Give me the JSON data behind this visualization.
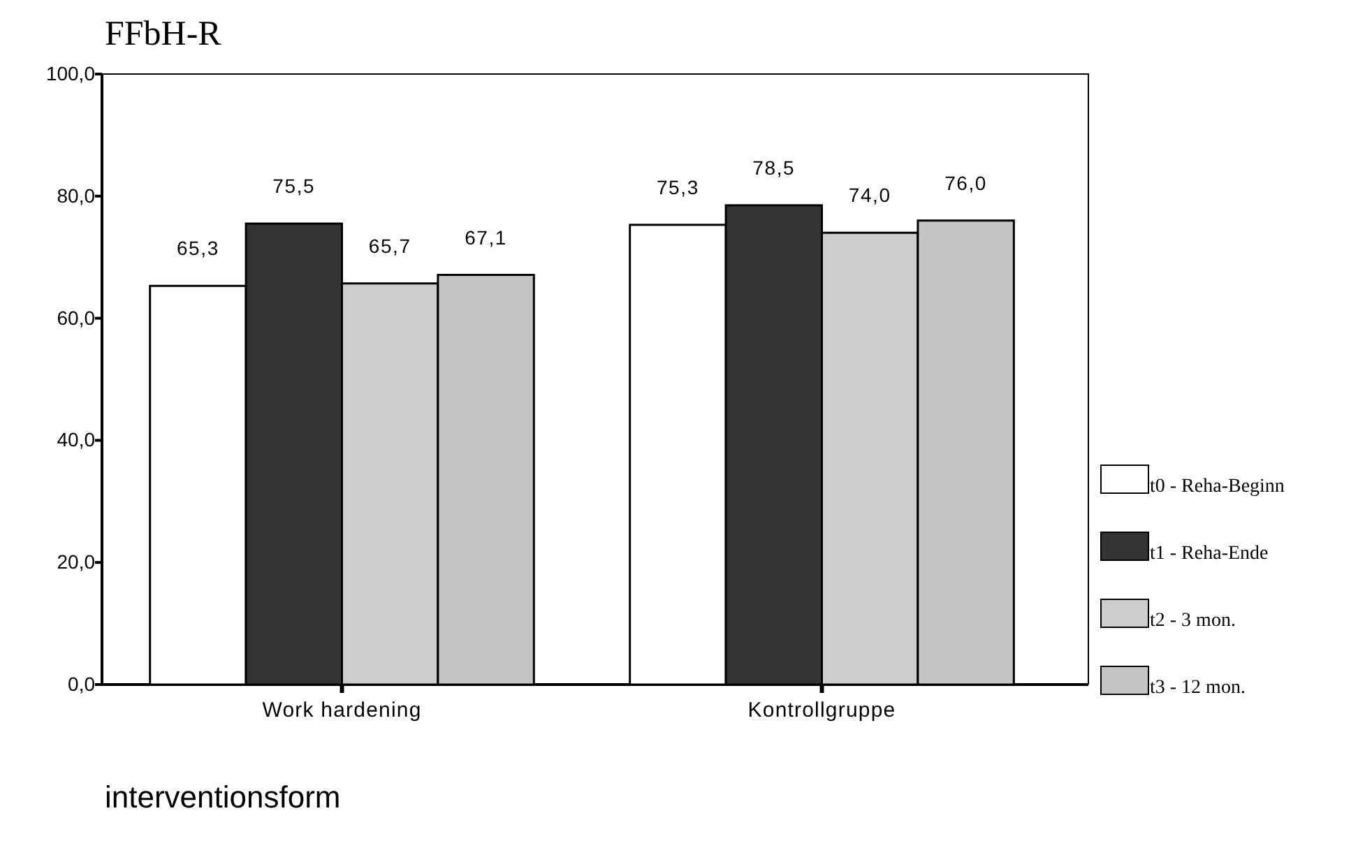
{
  "chart_data": {
    "type": "bar",
    "title": "FFbH-R",
    "xlabel": "interventionsform",
    "categories": [
      "Work hardening",
      "Kontrollgruppe"
    ],
    "series": [
      {
        "name": "t0 - Reha-Beginn",
        "color": "#ffffff",
        "values": [
          65.3,
          75.3
        ],
        "value_labels": [
          "65,3",
          "75,3"
        ]
      },
      {
        "name": "t1 - Reha-Ende",
        "color": "#333333",
        "values": [
          75.5,
          78.5
        ],
        "value_labels": [
          "75,5",
          "78,5"
        ]
      },
      {
        "name": "t2 - 3 mon.",
        "color": "#cccccc",
        "values": [
          65.7,
          74.0
        ],
        "value_labels": [
          "65,7",
          "74,0"
        ]
      },
      {
        "name": "t3 - 12 mon.",
        "color": "#c4c4c4",
        "values": [
          67.1,
          76.0
        ],
        "value_labels": [
          "67,1",
          "76,0"
        ]
      }
    ],
    "ylim": [
      0,
      100
    ],
    "yticks": [
      {
        "value": 0,
        "label": "0,0"
      },
      {
        "value": 20,
        "label": "20,0"
      },
      {
        "value": 40,
        "label": "40,0"
      },
      {
        "value": 60,
        "label": "60,0"
      },
      {
        "value": 80,
        "label": "80,0"
      },
      {
        "value": 100,
        "label": "100,0"
      }
    ],
    "grid": false,
    "legend": "right"
  }
}
